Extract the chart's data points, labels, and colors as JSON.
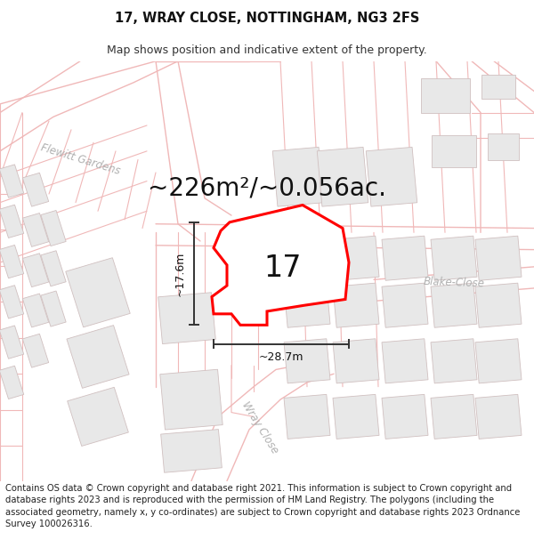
{
  "title_line1": "17, WRAY CLOSE, NOTTINGHAM, NG3 2FS",
  "title_line2": "Map shows position and indicative extent of the property.",
  "area_text": "~226m²/~0.056ac.",
  "label_17": "17",
  "dim_height": "~17.6m",
  "dim_width": "~28.7m",
  "street_labels": [
    "Flewitt Gardens",
    "Blake‑Close",
    "Wray Close"
  ],
  "footer_text": "Contains OS data © Crown copyright and database right 2021. This information is subject to Crown copyright and database rights 2023 and is reproduced with the permission of HM Land Registry. The polygons (including the associated geometry, namely x, y co-ordinates) are subject to Crown copyright and database rights 2023 Ordnance Survey 100026316.",
  "map_bg": "#ffffff",
  "road_line_color": "#f0b8b8",
  "building_fill": "#e8e8e8",
  "building_edge": "#d0c0c0",
  "plot_color": "#ff0000",
  "dim_color": "#333333",
  "street_color": "#b0b0b0",
  "title_fontsize": 10.5,
  "subtitle_fontsize": 9,
  "area_fontsize": 20,
  "label_fontsize": 24,
  "street_fontsize": 8.5,
  "dim_fontsize": 9,
  "footer_fontsize": 7.2
}
